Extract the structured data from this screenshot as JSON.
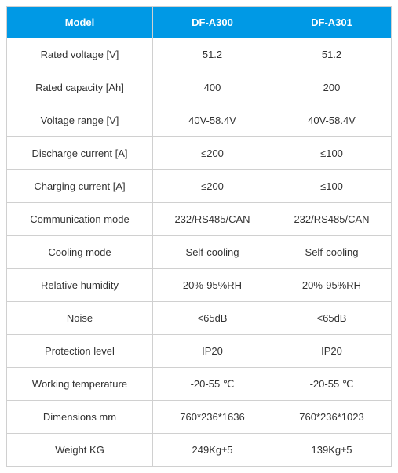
{
  "table": {
    "type": "table",
    "header_bg": "#0099e5",
    "header_text_color": "#ffffff",
    "cell_bg": "#ffffff",
    "cell_text_color": "#333333",
    "border_color": "#d0d0d0",
    "font_size": 13,
    "columns": [
      {
        "label": "Model",
        "width": 186
      },
      {
        "label": "DF-A300",
        "width": 152
      },
      {
        "label": "DF-A301",
        "width": 152
      }
    ],
    "rows": [
      {
        "label": "Rated voltage [V]",
        "v1": "51.2",
        "v2": "51.2"
      },
      {
        "label": "Rated capacity [Ah]",
        "v1": "400",
        "v2": "200"
      },
      {
        "label": "Voltage range [V]",
        "v1": "40V-58.4V",
        "v2": "40V-58.4V"
      },
      {
        "label": "Discharge current [A]",
        "v1": "≤200",
        "v2": "≤100"
      },
      {
        "label": "Charging current [A]",
        "v1": "≤200",
        "v2": "≤100"
      },
      {
        "label": "Communication mode",
        "v1": "232/RS485/CAN",
        "v2": "232/RS485/CAN"
      },
      {
        "label": "Cooling mode",
        "v1": "Self-cooling",
        "v2": "Self-cooling"
      },
      {
        "label": "Relative humidity",
        "v1": "20%-95%RH",
        "v2": "20%-95%RH"
      },
      {
        "label": "Noise",
        "v1": "<65dB",
        "v2": "<65dB"
      },
      {
        "label": "Protection level",
        "v1": "IP20",
        "v2": "IP20"
      },
      {
        "label": "Working temperature",
        "v1": "-20-55 ℃",
        "v2": "-20-55 ℃"
      },
      {
        "label": "Dimensions mm",
        "v1": "760*236*1636",
        "v2": "760*236*1023"
      },
      {
        "label": "Weight KG",
        "v1": "249Kg±5",
        "v2": "139Kg±5"
      }
    ]
  }
}
